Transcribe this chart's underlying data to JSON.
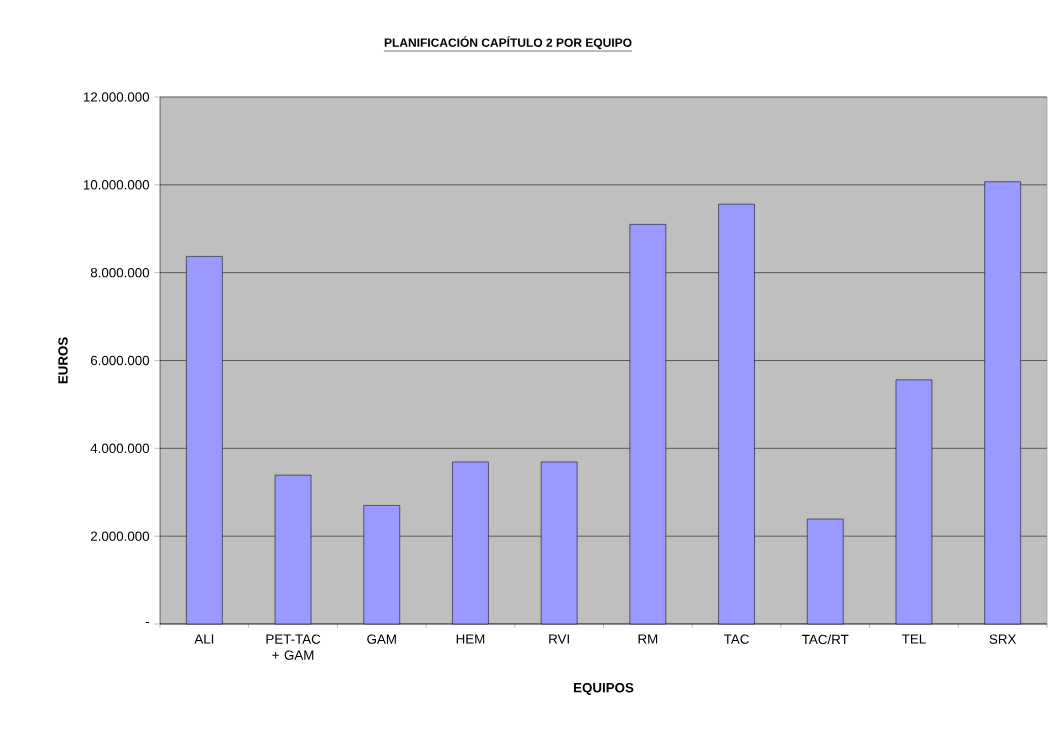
{
  "chart_data": {
    "type": "bar",
    "title": "PLANIFICACIÓN CAPÍTULO 2 POR EQUIPO",
    "xlabel": "EQUIPOS",
    "ylabel": "EUROS",
    "categories": [
      "ALI",
      "PET-TAC + GAM",
      "GAM",
      "HEM",
      "RVI",
      "RM",
      "TAC",
      "TAC/RT",
      "TEL",
      "SRX"
    ],
    "values": [
      8370000,
      3390000,
      2700000,
      3690000,
      3690000,
      9100000,
      9560000,
      2390000,
      5560000,
      10070000
    ],
    "color": "#9999ff",
    "ylim": [
      0,
      12000000
    ],
    "yticks": [
      {
        "value": 0,
        "label": "-"
      },
      {
        "value": 2000000,
        "label": "2.000.000"
      },
      {
        "value": 4000000,
        "label": "4.000.000"
      },
      {
        "value": 6000000,
        "label": "6.000.000"
      },
      {
        "value": 8000000,
        "label": "8.000.000"
      },
      {
        "value": 10000000,
        "label": "10.000.000"
      },
      {
        "value": 12000000,
        "label": "12.000.000"
      }
    ],
    "grid": "y"
  }
}
